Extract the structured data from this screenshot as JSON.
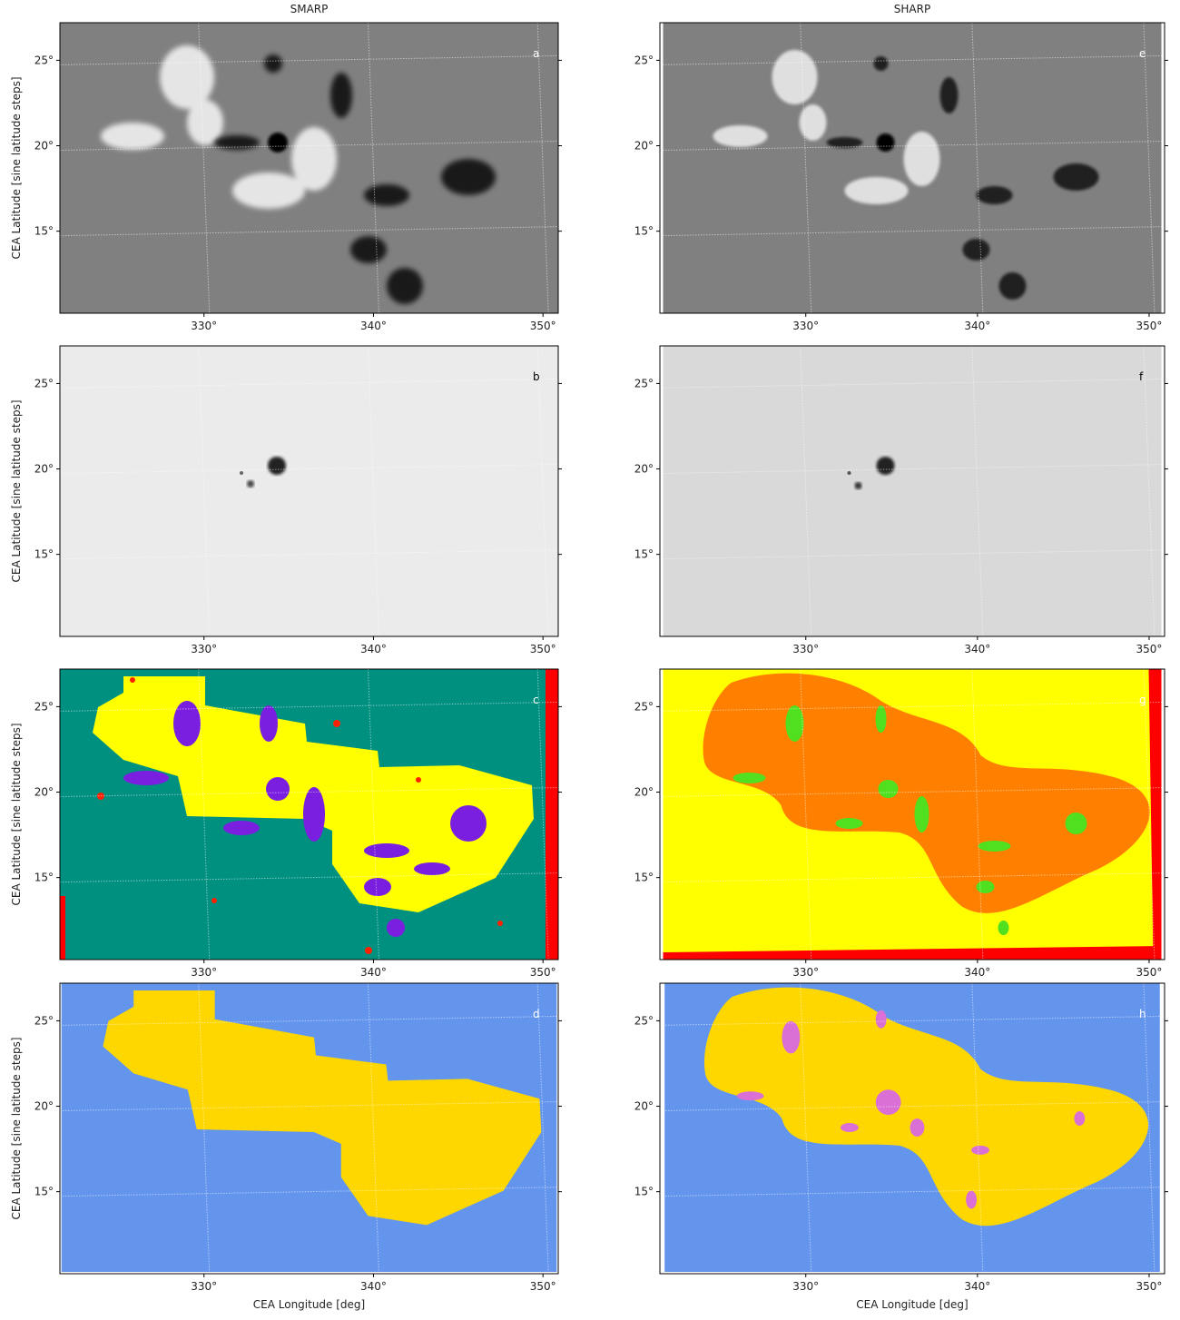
{
  "xlim": [
    321.5,
    350.9
  ],
  "ylim": [
    10.2,
    27.2
  ],
  "xticks": [
    {
      "value": 330,
      "label": "330°"
    },
    {
      "value": 340,
      "label": "340°"
    },
    {
      "value": 350,
      "label": "350°"
    }
  ],
  "yticks": [
    {
      "value": 15,
      "label": "15°"
    },
    {
      "value": 20,
      "label": "20°"
    },
    {
      "value": 25,
      "label": "25°"
    }
  ],
  "xlabel": "CEA Longitude [deg]",
  "ylabel": "CEA Latitude [sine latitude steps]",
  "columns": [
    {
      "title": "SMARP",
      "panels": [
        "a",
        "b",
        "c",
        "d"
      ]
    },
    {
      "title": "SHARP",
      "panels": [
        "e",
        "f",
        "g",
        "h"
      ]
    }
  ]
}
